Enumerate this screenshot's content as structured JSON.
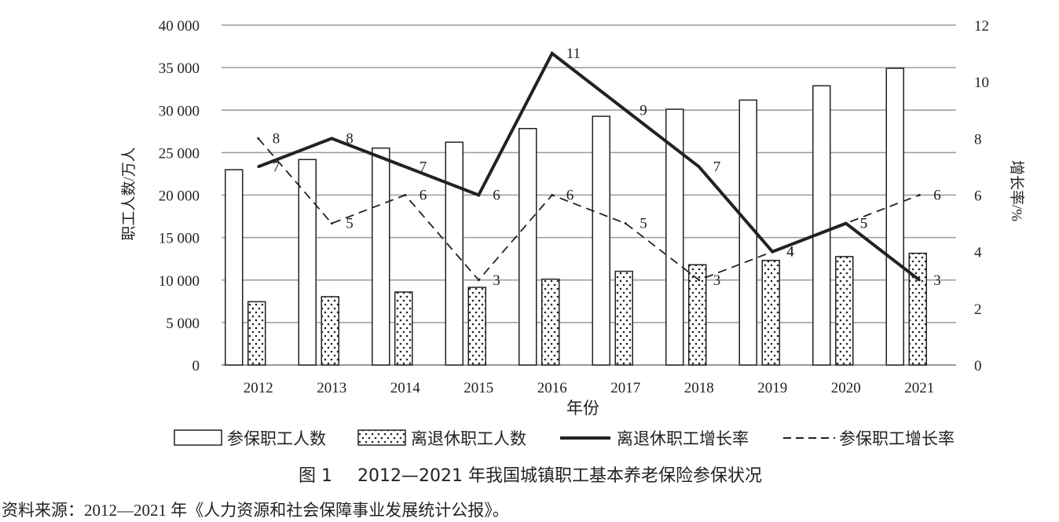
{
  "chart_data": {
    "type": "bar",
    "categories": [
      "2012",
      "2013",
      "2014",
      "2015",
      "2016",
      "2017",
      "2018",
      "2019",
      "2020",
      "2021"
    ],
    "xlabel": "年份",
    "ylabel_left": "职工人数/万人",
    "ylabel_right": "增长率/%",
    "ylim_left": [
      0,
      40000
    ],
    "ylim_right": [
      0,
      12
    ],
    "yticks_left": [
      "0",
      "5 000",
      "10 000",
      "15 000",
      "20 000",
      "25 000",
      "30 000",
      "35 000",
      "40 000"
    ],
    "yticks_right": [
      "0",
      "2",
      "4",
      "6",
      "8",
      "10",
      "12"
    ],
    "grid": true,
    "legend_position": "bottom",
    "series": [
      {
        "name": "参保职工人数",
        "kind": "bar",
        "style": "hollow",
        "axis": "left",
        "values": [
          22980,
          24180,
          25530,
          26220,
          27830,
          29270,
          30100,
          31180,
          32860,
          34920
        ]
      },
      {
        "name": "离退休职工人数",
        "kind": "bar",
        "style": "dotted",
        "axis": "left",
        "values": [
          7450,
          8040,
          8590,
          9140,
          10100,
          11030,
          11800,
          12310,
          12760,
          13150
        ]
      },
      {
        "name": "离退休职工增长率",
        "kind": "line",
        "style": "solid",
        "axis": "right",
        "values": [
          7,
          8,
          7,
          6,
          11,
          9,
          7,
          4,
          5,
          3
        ],
        "labels": [
          "7",
          "8",
          "7",
          "6",
          "11",
          "9",
          "7",
          "4",
          "5",
          "3"
        ]
      },
      {
        "name": "参保职工增长率",
        "kind": "line",
        "style": "dashed",
        "axis": "right",
        "values": [
          8,
          5,
          6,
          3,
          6,
          5,
          3,
          4,
          5,
          6
        ],
        "labels": [
          "8",
          "5",
          "6",
          "3",
          "6",
          "5",
          "3",
          "4",
          "5",
          "6"
        ]
      }
    ]
  },
  "caption": {
    "figure_label": "图 1",
    "figure_title": "2012—2021 年我国城镇职工基本养老保险参保状况",
    "source": "资料来源：2012—2021 年《人力资源和社会保障事业发展统计公报》。"
  }
}
